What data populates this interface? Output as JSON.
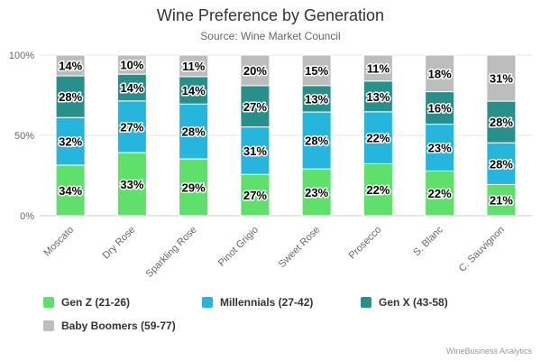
{
  "title": "Wine Preference by Generation",
  "subtitle": "Source: Wine Market Council",
  "credits": "WineBusiness Analytics",
  "chart_data": {
    "type": "bar",
    "stacking": "percent",
    "title": "Wine Preference by Generation",
    "subtitle": "Source: Wine Market Council",
    "categories": [
      "Moscato",
      "Dry Rose",
      "Sparkling Rose",
      "Pinot Grigio",
      "Sweet Rose",
      "Prosecco",
      "S. Blanc",
      "C. Sauvignon"
    ],
    "series": [
      {
        "name": "Gen Z (21-26)",
        "color": "#5ee06a",
        "values": [
          34,
          33,
          29,
          27,
          23,
          22,
          22,
          21
        ]
      },
      {
        "name": "Millennials (27-42)",
        "color": "#26b5dc",
        "values": [
          32,
          27,
          28,
          31,
          28,
          22,
          23,
          28
        ]
      },
      {
        "name": "Gen X (43-58)",
        "color": "#27908a",
        "values": [
          28,
          14,
          14,
          27,
          13,
          13,
          16,
          28
        ]
      },
      {
        "name": "Baby Boomers (59-77)",
        "color": "#bdbdbd",
        "values": [
          14,
          10,
          11,
          20,
          15,
          11,
          18,
          31
        ]
      }
    ],
    "yticks": [
      "0%",
      "50%",
      "100%"
    ],
    "ylim": [
      0,
      100
    ],
    "grid": true,
    "legend_position": "bottom"
  }
}
